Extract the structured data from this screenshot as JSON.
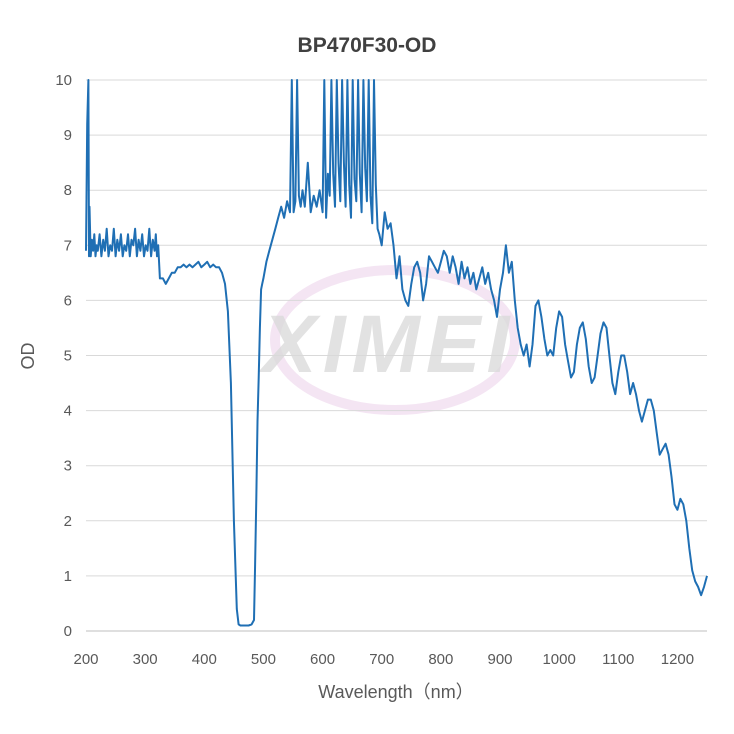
{
  "chart_data": {
    "type": "line",
    "title": "BP470F30-OD",
    "xlabel": "Wavelength（nm）",
    "ylabel": "OD",
    "xlim": [
      200,
      1250
    ],
    "ylim": [
      0,
      10
    ],
    "x_ticks": [
      200,
      300,
      400,
      500,
      600,
      700,
      800,
      900,
      1000,
      1100,
      1200
    ],
    "y_ticks": [
      0,
      1,
      2,
      3,
      4,
      5,
      6,
      7,
      8,
      9,
      10
    ],
    "grid": "horizontal",
    "legend": "none",
    "watermark": "XIMEI",
    "colors": {
      "series": "#1f6fb4",
      "grid": "#d9d9d9",
      "text": "#595959"
    },
    "series": [
      {
        "x": [
          200,
          202,
          204,
          205,
          206,
          208,
          210,
          212,
          214,
          216,
          218,
          220,
          223,
          226,
          229,
          232,
          235,
          238,
          241,
          244,
          247,
          250,
          253,
          256,
          259,
          262,
          265,
          268,
          271,
          274,
          277,
          280,
          283,
          286,
          289,
          292,
          295,
          298,
          301,
          304,
          307,
          310,
          313,
          316,
          318,
          320,
          322,
          325,
          330,
          335,
          340,
          345,
          350,
          355,
          360,
          365,
          370,
          375,
          380,
          385,
          390,
          395,
          400,
          405,
          410,
          415,
          420,
          425,
          430,
          435,
          440,
          445,
          450,
          455,
          458,
          461,
          463,
          466,
          470,
          475,
          480,
          484,
          486,
          488,
          490,
          492,
          494,
          496,
          498,
          500,
          505,
          510,
          515,
          520,
          525,
          530,
          535,
          540,
          545,
          548,
          551,
          554,
          557,
          560,
          563,
          566,
          570,
          575,
          580,
          585,
          590,
          595,
          600,
          603,
          606,
          609,
          612,
          615,
          618,
          621,
          624,
          627,
          630,
          633,
          636,
          639,
          642,
          645,
          648,
          651,
          654,
          657,
          660,
          663,
          666,
          669,
          672,
          675,
          678,
          681,
          684,
          687,
          690,
          693,
          696,
          700,
          705,
          710,
          715,
          720,
          725,
          730,
          735,
          740,
          745,
          750,
          755,
          760,
          765,
          770,
          775,
          780,
          785,
          790,
          795,
          800,
          805,
          810,
          815,
          820,
          825,
          830,
          835,
          840,
          845,
          850,
          855,
          860,
          865,
          870,
          875,
          880,
          885,
          890,
          895,
          900,
          905,
          910,
          915,
          920,
          925,
          930,
          935,
          940,
          945,
          950,
          955,
          960,
          965,
          970,
          975,
          980,
          985,
          990,
          995,
          1000,
          1005,
          1010,
          1015,
          1020,
          1025,
          1030,
          1035,
          1040,
          1045,
          1050,
          1055,
          1060,
          1065,
          1070,
          1075,
          1080,
          1085,
          1090,
          1095,
          1100,
          1105,
          1110,
          1115,
          1120,
          1125,
          1130,
          1135,
          1140,
          1145,
          1150,
          1155,
          1160,
          1165,
          1170,
          1175,
          1180,
          1185,
          1190,
          1195,
          1200,
          1205,
          1210,
          1215,
          1220,
          1225,
          1230,
          1235,
          1240,
          1245,
          1250
        ],
        "y": [
          6.9,
          9.2,
          10,
          6.8,
          7.7,
          6.8,
          7.1,
          6.9,
          7.2,
          6.8,
          7.0,
          6.9,
          7.2,
          6.8,
          7.1,
          6.9,
          7.3,
          6.8,
          7.0,
          6.9,
          7.3,
          6.8,
          7.1,
          6.9,
          7.2,
          6.8,
          7.0,
          6.9,
          7.2,
          6.8,
          7.1,
          7.0,
          7.3,
          6.8,
          7.1,
          6.9,
          7.2,
          6.8,
          7.0,
          6.9,
          7.3,
          6.8,
          7.1,
          6.9,
          7.2,
          6.8,
          7.0,
          6.4,
          6.4,
          6.3,
          6.4,
          6.5,
          6.5,
          6.6,
          6.6,
          6.65,
          6.6,
          6.65,
          6.6,
          6.65,
          6.7,
          6.6,
          6.65,
          6.7,
          6.6,
          6.65,
          6.6,
          6.6,
          6.5,
          6.3,
          5.8,
          4.5,
          2.0,
          0.4,
          0.12,
          0.1,
          0.1,
          0.1,
          0.1,
          0.1,
          0.12,
          0.2,
          1.2,
          2.4,
          3.8,
          4.6,
          5.5,
          6.2,
          6.3,
          6.4,
          6.7,
          6.9,
          7.1,
          7.3,
          7.5,
          7.7,
          7.5,
          7.8,
          7.6,
          10,
          7.6,
          7.8,
          10,
          7.9,
          7.7,
          8.0,
          7.7,
          8.5,
          7.6,
          7.9,
          7.7,
          8.0,
          7.6,
          10,
          7.5,
          8.3,
          7.9,
          10,
          8.3,
          7.7,
          10,
          8.5,
          7.8,
          10,
          8.5,
          7.7,
          10,
          8.1,
          7.5,
          10,
          8.2,
          7.8,
          10,
          8.3,
          7.6,
          10,
          8.4,
          7.8,
          10,
          7.9,
          7.4,
          10,
          8.1,
          7.3,
          7.2,
          7.0,
          7.6,
          7.3,
          7.4,
          7.0,
          6.4,
          6.8,
          6.2,
          6.0,
          5.9,
          6.3,
          6.6,
          6.7,
          6.5,
          6.0,
          6.3,
          6.8,
          6.7,
          6.6,
          6.5,
          6.7,
          6.9,
          6.8,
          6.5,
          6.8,
          6.6,
          6.3,
          6.7,
          6.4,
          6.6,
          6.3,
          6.5,
          6.2,
          6.4,
          6.6,
          6.3,
          6.5,
          6.2,
          6.0,
          5.7,
          6.2,
          6.5,
          7.0,
          6.5,
          6.7,
          6.0,
          5.5,
          5.2,
          5.0,
          5.2,
          4.8,
          5.2,
          5.9,
          6.0,
          5.7,
          5.3,
          5.0,
          5.1,
          5.0,
          5.5,
          5.8,
          5.7,
          5.2,
          4.9,
          4.6,
          4.7,
          5.2,
          5.5,
          5.6,
          5.3,
          4.8,
          4.5,
          4.6,
          5.0,
          5.4,
          5.6,
          5.5,
          5.0,
          4.5,
          4.3,
          4.7,
          5.0,
          5.0,
          4.7,
          4.3,
          4.5,
          4.3,
          4.0,
          3.8,
          4.0,
          4.2,
          4.2,
          4.0,
          3.6,
          3.2,
          3.3,
          3.4,
          3.2,
          2.8,
          2.3,
          2.2,
          2.4,
          2.3,
          2.0,
          1.5,
          1.1,
          0.9,
          0.8,
          0.65,
          0.8,
          1.0
        ]
      }
    ]
  }
}
